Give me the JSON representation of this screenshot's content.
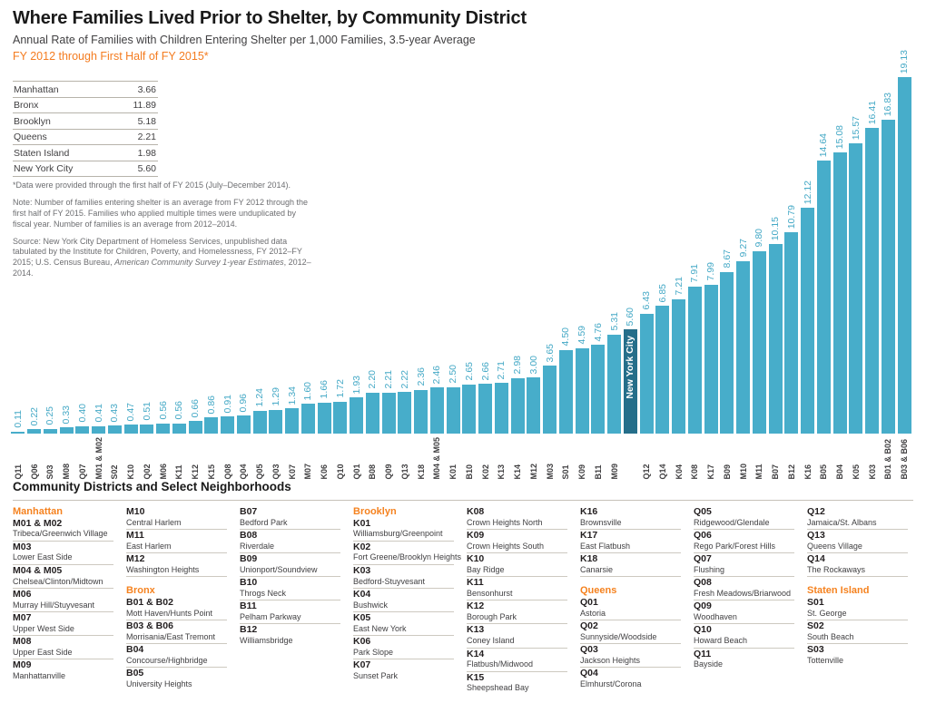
{
  "header": {
    "title": "Where Families Lived Prior to Shelter, by Community District",
    "subtitle": "Annual Rate of Families with Children Entering Shelter per 1,000 Families, 3.5-year Average",
    "period": "FY 2012 through First Half of FY 2015*"
  },
  "summary_table": {
    "rows": [
      {
        "label": "Manhattan",
        "value": "3.66"
      },
      {
        "label": "Bronx",
        "value": "11.89"
      },
      {
        "label": "Brooklyn",
        "value": "5.18"
      },
      {
        "label": "Queens",
        "value": "2.21"
      },
      {
        "label": "Staten Island",
        "value": "1.98"
      },
      {
        "label": "New York City",
        "value": "5.60"
      }
    ]
  },
  "notes": {
    "footnote": "*Data were provided through the first half of FY 2015 (July–December 2014).",
    "note": "Note: Number of families entering shelter is an average from FY 2012 through the first half of FY 2015. Families who applied multiple times were unduplicated by fiscal year. Number of families is an average from 2012–2014.",
    "source_pre": "Source: New York City Department of Homeless Services, unpublished data tabulated by the Institute for Children, Poverty, and Homelessness, FY 2012–FY 2015; U.S. Census Bureau, ",
    "source_italic": "American Community Survey 1-year Estimates",
    "source_post": ", 2012–2014."
  },
  "chart_data": {
    "type": "bar",
    "title": "Where Families Lived Prior to Shelter, by Community District",
    "ylabel": "Annual rate of families with children entering shelter per 1,000 families",
    "xlabel": "Community district",
    "ylim": [
      0,
      19.13
    ],
    "grid": false,
    "legend_position": "none",
    "bar_color": "#47adca",
    "highlight_color": "#256e8a",
    "highlight_category": "New York City",
    "categories": [
      "Q11",
      "Q06",
      "S03",
      "M08",
      "Q07",
      "M01 & M02",
      "S02",
      "K10",
      "Q02",
      "M06",
      "K11",
      "K12",
      "K15",
      "Q08",
      "Q04",
      "Q05",
      "Q03",
      "K07",
      "M07",
      "K06",
      "Q10",
      "Q01",
      "B08",
      "Q09",
      "Q13",
      "K18",
      "M04 & M05",
      "K01",
      "B10",
      "K02",
      "K13",
      "K14",
      "M12",
      "M03",
      "S01",
      "K09",
      "B11",
      "M09",
      "New York City",
      "Q12",
      "Q14",
      "K04",
      "K08",
      "K17",
      "B09",
      "M10",
      "M11",
      "B07",
      "B12",
      "K16",
      "B05",
      "B04",
      "K05",
      "K03",
      "B01 & B02",
      "B03 & B06"
    ],
    "values": [
      0.11,
      0.22,
      0.25,
      0.33,
      0.4,
      0.41,
      0.43,
      0.47,
      0.51,
      0.56,
      0.56,
      0.66,
      0.86,
      0.91,
      0.96,
      1.24,
      1.29,
      1.34,
      1.6,
      1.66,
      1.72,
      1.93,
      2.2,
      2.21,
      2.22,
      2.36,
      2.46,
      2.5,
      2.65,
      2.66,
      2.71,
      2.98,
      3.0,
      3.65,
      4.5,
      4.59,
      4.76,
      5.31,
      5.6,
      6.43,
      6.85,
      7.21,
      7.91,
      7.99,
      8.67,
      9.27,
      9.8,
      10.15,
      10.79,
      12.12,
      14.64,
      15.08,
      15.57,
      16.41,
      16.83,
      19.13
    ]
  },
  "legend": {
    "heading": "Community Districts and Select Neighborhoods",
    "columns": [
      [
        {
          "h": "Manhattan"
        },
        {
          "c": "M01 & M02",
          "n": "Tribeca/Greenwich Village"
        },
        {
          "c": "M03",
          "n": "Lower East Side"
        },
        {
          "c": "M04 & M05",
          "n": "Chelsea/Clinton/Midtown"
        },
        {
          "c": "M06",
          "n": "Murray Hill/Stuyvesant"
        },
        {
          "c": "M07",
          "n": "Upper West Side"
        },
        {
          "c": "M08",
          "n": "Upper East Side"
        },
        {
          "c": "M09",
          "n": "Manhattanville"
        }
      ],
      [
        {
          "c": "M10",
          "n": "Central Harlem"
        },
        {
          "c": "M11",
          "n": "East Harlem"
        },
        {
          "c": "M12",
          "n": "Washington Heights"
        },
        {
          "h": "Bronx"
        },
        {
          "c": "B01 & B02",
          "n": "Mott Haven/Hunts Point"
        },
        {
          "c": "B03 & B06",
          "n": "Morrisania/East Tremont"
        },
        {
          "c": "B04",
          "n": "Concourse/Highbridge"
        },
        {
          "c": "B05",
          "n": "University Heights"
        }
      ],
      [
        {
          "c": "B07",
          "n": "Bedford Park"
        },
        {
          "c": "B08",
          "n": "Riverdale"
        },
        {
          "c": "B09",
          "n": "Unionport/Soundview"
        },
        {
          "c": "B10",
          "n": "Throgs Neck"
        },
        {
          "c": "B11",
          "n": "Pelham Parkway"
        },
        {
          "c": "B12",
          "n": "Williamsbridge"
        }
      ],
      [
        {
          "h": "Brooklyn"
        },
        {
          "c": "K01",
          "n": "Williamsburg/Greenpoint"
        },
        {
          "c": "K02",
          "n": "Fort Greene/Brooklyn Heights"
        },
        {
          "c": "K03",
          "n": "Bedford-Stuyvesant"
        },
        {
          "c": "K04",
          "n": "Bushwick"
        },
        {
          "c": "K05",
          "n": "East New York"
        },
        {
          "c": "K06",
          "n": "Park Slope"
        },
        {
          "c": "K07",
          "n": "Sunset Park"
        }
      ],
      [
        {
          "c": "K08",
          "n": "Crown Heights North"
        },
        {
          "c": "K09",
          "n": "Crown Heights South"
        },
        {
          "c": "K10",
          "n": "Bay Ridge"
        },
        {
          "c": "K11",
          "n": "Bensonhurst"
        },
        {
          "c": "K12",
          "n": "Borough Park"
        },
        {
          "c": "K13",
          "n": "Coney Island"
        },
        {
          "c": "K14",
          "n": "Flatbush/Midwood"
        },
        {
          "c": "K15",
          "n": "Sheepshead Bay"
        }
      ],
      [
        {
          "c": "K16",
          "n": "Brownsville"
        },
        {
          "c": "K17",
          "n": "East Flatbush"
        },
        {
          "c": "K18",
          "n": "Canarsie"
        },
        {
          "h": "Queens"
        },
        {
          "c": "Q01",
          "n": "Astoria"
        },
        {
          "c": "Q02",
          "n": "Sunnyside/Woodside"
        },
        {
          "c": "Q03",
          "n": "Jackson Heights"
        },
        {
          "c": "Q04",
          "n": "Elmhurst/Corona"
        }
      ],
      [
        {
          "c": "Q05",
          "n": "Ridgewood/Glendale"
        },
        {
          "c": "Q06",
          "n": "Rego Park/Forest Hills"
        },
        {
          "c": "Q07",
          "n": "Flushing"
        },
        {
          "c": "Q08",
          "n": "Fresh Meadows/Briarwood"
        },
        {
          "c": "Q09",
          "n": "Woodhaven"
        },
        {
          "c": "Q10",
          "n": "Howard Beach"
        },
        {
          "c": "Q11",
          "n": "Bayside"
        }
      ],
      [
        {
          "c": "Q12",
          "n": "Jamaica/St. Albans"
        },
        {
          "c": "Q13",
          "n": "Queens Village"
        },
        {
          "c": "Q14",
          "n": "The Rockaways"
        },
        {
          "h": "Staten Island"
        },
        {
          "c": "S01",
          "n": "St. George"
        },
        {
          "c": "S02",
          "n": "South Beach"
        },
        {
          "c": "S03",
          "n": "Tottenville"
        }
      ]
    ]
  }
}
